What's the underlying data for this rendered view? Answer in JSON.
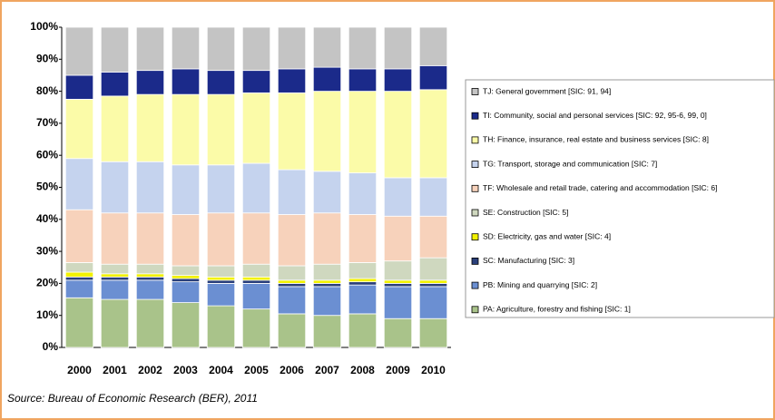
{
  "chart_data": {
    "type": "bar",
    "stacked": true,
    "categories": [
      "2000",
      "2001",
      "2002",
      "2003",
      "2004",
      "2005",
      "2006",
      "2007",
      "2008",
      "2009",
      "2010"
    ],
    "series": [
      {
        "name": "PA: Agriculture, forestry and fishing [SIC: 1]",
        "color": "#a9c38a",
        "values": [
          15.5,
          15,
          15,
          14,
          13,
          12,
          10.5,
          10,
          10.5,
          9,
          9
        ]
      },
      {
        "name": "PB: Mining and quarrying [SIC: 2]",
        "color": "#6b8fd2",
        "values": [
          5.5,
          6,
          6,
          6.5,
          7,
          8,
          8.5,
          9,
          9,
          10,
          10
        ]
      },
      {
        "name": "SC: Manufacturing [SIC: 3]",
        "color": "#2a3f7a",
        "values": [
          1,
          1,
          1,
          1,
          1,
          1,
          1,
          1,
          1,
          1,
          1
        ]
      },
      {
        "name": "SD: Electricity, gas and water [SIC: 4]",
        "color": "#f2f200",
        "values": [
          1.5,
          1,
          1,
          1,
          1,
          1,
          1,
          1,
          1,
          1,
          1
        ]
      },
      {
        "name": "SE: Construction [SIC: 5]",
        "color": "#cfd8bf",
        "values": [
          3,
          3,
          3,
          3,
          3.5,
          4,
          4.5,
          5,
          5,
          6,
          7
        ]
      },
      {
        "name": "TF: Wholesale and retail trade, catering and accommodation [SIC: 6]",
        "color": "#f7d2bb",
        "values": [
          16.5,
          16,
          16,
          16,
          16.5,
          16,
          16,
          16,
          15,
          14,
          13
        ]
      },
      {
        "name": "TG: Transport, storage and communication [SIC: 7]",
        "color": "#c5d3ee",
        "values": [
          16,
          16,
          16,
          15.5,
          15,
          15.5,
          14,
          13,
          13,
          12,
          12
        ]
      },
      {
        "name": "TH: Finance, insurance, real estate and business services [SIC: 8]",
        "color": "#fbfba8",
        "values": [
          18.5,
          20.5,
          21,
          22,
          22,
          22,
          24,
          25,
          25.5,
          27,
          27.5
        ]
      },
      {
        "name": "TI: Community, social and personal services [SIC: 92, 95-6, 99, 0]",
        "color": "#1b2a8a",
        "values": [
          7.5,
          7.5,
          7.5,
          8,
          7.5,
          7,
          7.5,
          7.5,
          7,
          7,
          7.5
        ]
      },
      {
        "name": "TJ: General government [SIC: 91, 94]",
        "color": "#c4c4c4",
        "values": [
          15,
          14,
          13.5,
          13,
          13.5,
          13.5,
          13,
          12.5,
          13,
          13,
          12
        ]
      }
    ],
    "ylim": [
      0,
      100
    ],
    "yticks": [
      {
        "value": 0,
        "label": "0%"
      },
      {
        "value": 10,
        "label": "10%"
      },
      {
        "value": 20,
        "label": "20%"
      },
      {
        "value": 30,
        "label": "30%"
      },
      {
        "value": 40,
        "label": "40%"
      },
      {
        "value": 50,
        "label": "50%"
      },
      {
        "value": 60,
        "label": "60%"
      },
      {
        "value": 70,
        "label": "70%"
      },
      {
        "value": 80,
        "label": "80%"
      },
      {
        "value": 90,
        "label": "90%"
      },
      {
        "value": 100,
        "label": "100%"
      }
    ],
    "source": "Source: Bureau of Economic Research (BER), 2011"
  }
}
